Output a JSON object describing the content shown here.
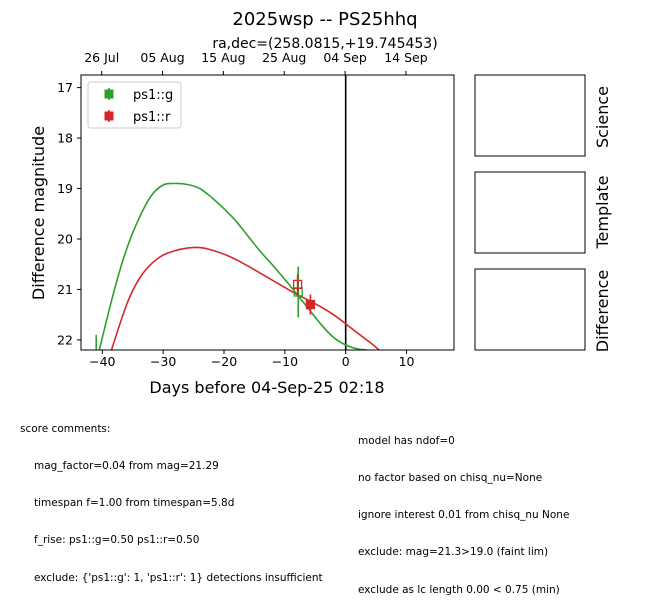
{
  "chart_data": {
    "type": "scatter",
    "title": "2025wsp -- PS25hhq",
    "subtitle": "ra,dec=(258.0815,+19.745453)",
    "xlabel": "Days before 04-Sep-25 02:18",
    "ylabel": "Difference magnitude",
    "xlim": [
      -43.5,
      17.8
    ],
    "ylim": [
      22.2,
      16.75
    ],
    "y_inverted": true,
    "x_ticks": [
      -40,
      -30,
      -20,
      -10,
      0,
      10
    ],
    "y_ticks": [
      17,
      18,
      19,
      20,
      21,
      22
    ],
    "top_axis_ticks": [
      {
        "label": "26 Jul",
        "x": -40.1
      },
      {
        "label": "05 Aug",
        "x": -30.1
      },
      {
        "label": "15 Aug",
        "x": -20.1
      },
      {
        "label": "25 Aug",
        "x": -10.1
      },
      {
        "label": "04 Sep",
        "x": -0.1
      },
      {
        "label": "14 Sep",
        "x": 9.9
      }
    ],
    "reference_line_x": 0,
    "legend_position": "top-left",
    "grid": false,
    "series": [
      {
        "name": "ps1::g",
        "color": "#2ca02c",
        "model_curve": [
          [
            -40.5,
            22.2
          ],
          [
            -38,
            21.0
          ],
          [
            -36,
            20.2
          ],
          [
            -34,
            19.6
          ],
          [
            -32,
            19.15
          ],
          [
            -30,
            18.93
          ],
          [
            -28,
            18.9
          ],
          [
            -26,
            18.92
          ],
          [
            -24,
            19.0
          ],
          [
            -22,
            19.18
          ],
          [
            -20,
            19.4
          ],
          [
            -18,
            19.65
          ],
          [
            -16,
            19.95
          ],
          [
            -14,
            20.25
          ],
          [
            -12,
            20.52
          ],
          [
            -10,
            20.8
          ],
          [
            -8,
            21.1
          ],
          [
            -6,
            21.4
          ],
          [
            -4,
            21.7
          ],
          [
            -2,
            21.95
          ],
          [
            0,
            22.1
          ],
          [
            2,
            22.18
          ],
          [
            3.5,
            22.2
          ]
        ],
        "points": [
          {
            "x": -7.8,
            "y": 21.05,
            "yerr": 0.5,
            "marker": "open-square"
          }
        ],
        "upper_limits": [
          {
            "x": -41.0,
            "y": 22.05
          }
        ]
      },
      {
        "name": "ps1::r",
        "color": "#d62728",
        "model_curve": [
          [
            -38.5,
            22.2
          ],
          [
            -36,
            21.3
          ],
          [
            -34,
            20.8
          ],
          [
            -32,
            20.5
          ],
          [
            -30,
            20.32
          ],
          [
            -28,
            20.23
          ],
          [
            -26,
            20.18
          ],
          [
            -24,
            20.17
          ],
          [
            -22,
            20.22
          ],
          [
            -20,
            20.3
          ],
          [
            -18,
            20.41
          ],
          [
            -16,
            20.54
          ],
          [
            -14,
            20.68
          ],
          [
            -12,
            20.82
          ],
          [
            -10,
            20.96
          ],
          [
            -8,
            21.1
          ],
          [
            -6,
            21.22
          ],
          [
            -4,
            21.35
          ],
          [
            -2,
            21.5
          ],
          [
            0,
            21.68
          ],
          [
            2,
            21.87
          ],
          [
            4,
            22.05
          ],
          [
            5.5,
            22.2
          ]
        ],
        "points": [
          {
            "x": -7.9,
            "y": 20.9,
            "yerr": 0.2,
            "marker": "open-square"
          },
          {
            "x": -5.8,
            "y": 21.3,
            "yerr": 0.2,
            "marker": "filled-square"
          }
        ]
      }
    ]
  },
  "panels": {
    "science": "Science",
    "template": "Template",
    "difference": "Difference"
  },
  "comments": {
    "header": "score comments:",
    "left": [
      "mag_factor=0.04 from mag=21.29",
      "timespan f=1.00 from timespan=5.8d",
      "f_rise: ps1::g=0.50 ps1::r=0.50",
      "exclude: {'ps1::g': 1, 'ps1::r': 1} detections insufficient"
    ],
    "right": [
      "model has ndof=0",
      "no factor based on chisq_nu=None",
      "ignore interest 0.01 from chisq_nu None",
      "exclude: mag=21.3>19.0 (faint lim)",
      "exclude as lc length 0.00 < 0.75 (min)"
    ]
  }
}
